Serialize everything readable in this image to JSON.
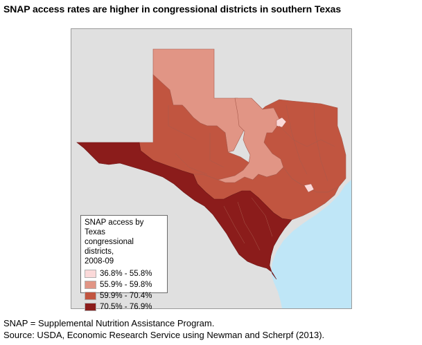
{
  "title": "SNAP access rates are higher in congressional districts in southern Texas",
  "legend": {
    "title_lines": [
      "SNAP access by Texas",
      "congressional districts,",
      "2008-09"
    ],
    "items": [
      {
        "label": "36.8% - 55.8%",
        "color": "#fbd9d9"
      },
      {
        "label": "55.9% - 59.8%",
        "color": "#e19585"
      },
      {
        "label": "59.9% - 70.4%",
        "color": "#c15540"
      },
      {
        "label": "70.5% - 76.9%",
        "color": "#8b1c1b"
      }
    ]
  },
  "map_colors": {
    "background_land": "#e0e0e0",
    "water": "#bfe6f7",
    "district_border": "#a85a4c"
  },
  "notes": [
    "SNAP = Supplemental Nutrition Assistance Program.",
    "Source: USDA, Economic Research Service using Newman and Scherpf (2013)."
  ]
}
